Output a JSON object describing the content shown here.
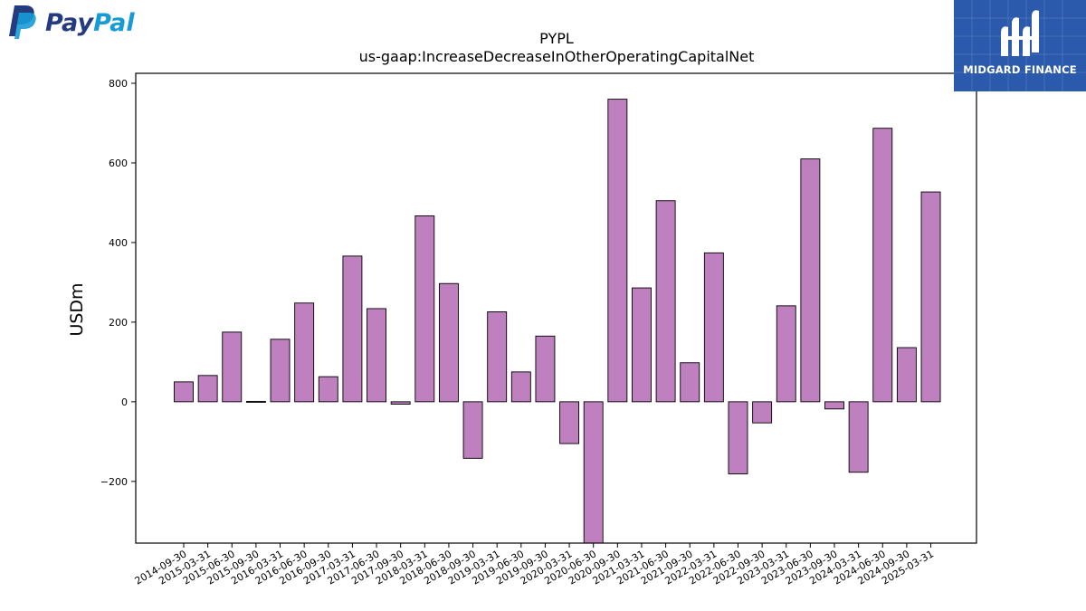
{
  "logos": {
    "left": {
      "icon": "paypal-logo-icon",
      "word_1": "Pay",
      "word_2": "Pal",
      "colors": {
        "dark": "#253b80",
        "light": "#179bd7"
      }
    },
    "right": {
      "icon": "midgard-finance-logo-icon",
      "text": "MIDGARD FINANCE",
      "bg_color": "#2b5aad"
    }
  },
  "chart_data": {
    "type": "bar",
    "title": "PYPL",
    "subtitle": "us-gaap:IncreaseDecreaseInOtherOperatingCapitalNet",
    "xlabel": "",
    "ylabel": "USDm",
    "ylim": [
      -355,
      825
    ],
    "yticks": [
      -200,
      0,
      200,
      400,
      600,
      800
    ],
    "bar_color": "#bf80bf",
    "edge_color": "#000000",
    "grid": false,
    "categories": [
      "2014-09-30",
      "2015-03-31",
      "2015-06-30",
      "2015-09-30",
      "2016-03-31",
      "2016-06-30",
      "2016-09-30",
      "2017-03-31",
      "2017-06-30",
      "2017-09-30",
      "2018-03-31",
      "2018-06-30",
      "2018-09-30",
      "2019-03-31",
      "2019-06-30",
      "2019-09-30",
      "2020-03-31",
      "2020-06-30",
      "2020-09-30",
      "2021-03-31",
      "2021-06-30",
      "2021-09-30",
      "2022-03-31",
      "2022-06-30",
      "2022-09-30",
      "2023-03-31",
      "2023-06-30",
      "2023-09-30",
      "2024-03-31",
      "2024-06-30",
      "2024-09-30",
      "2025-03-31"
    ],
    "values": [
      50,
      66,
      175,
      1,
      157,
      248,
      63,
      366,
      234,
      -6,
      467,
      297,
      -142,
      226,
      75,
      165,
      -105,
      -355,
      760,
      286,
      505,
      98,
      374,
      -181,
      -53,
      241,
      610,
      -18,
      -177,
      687,
      136,
      527
    ]
  }
}
